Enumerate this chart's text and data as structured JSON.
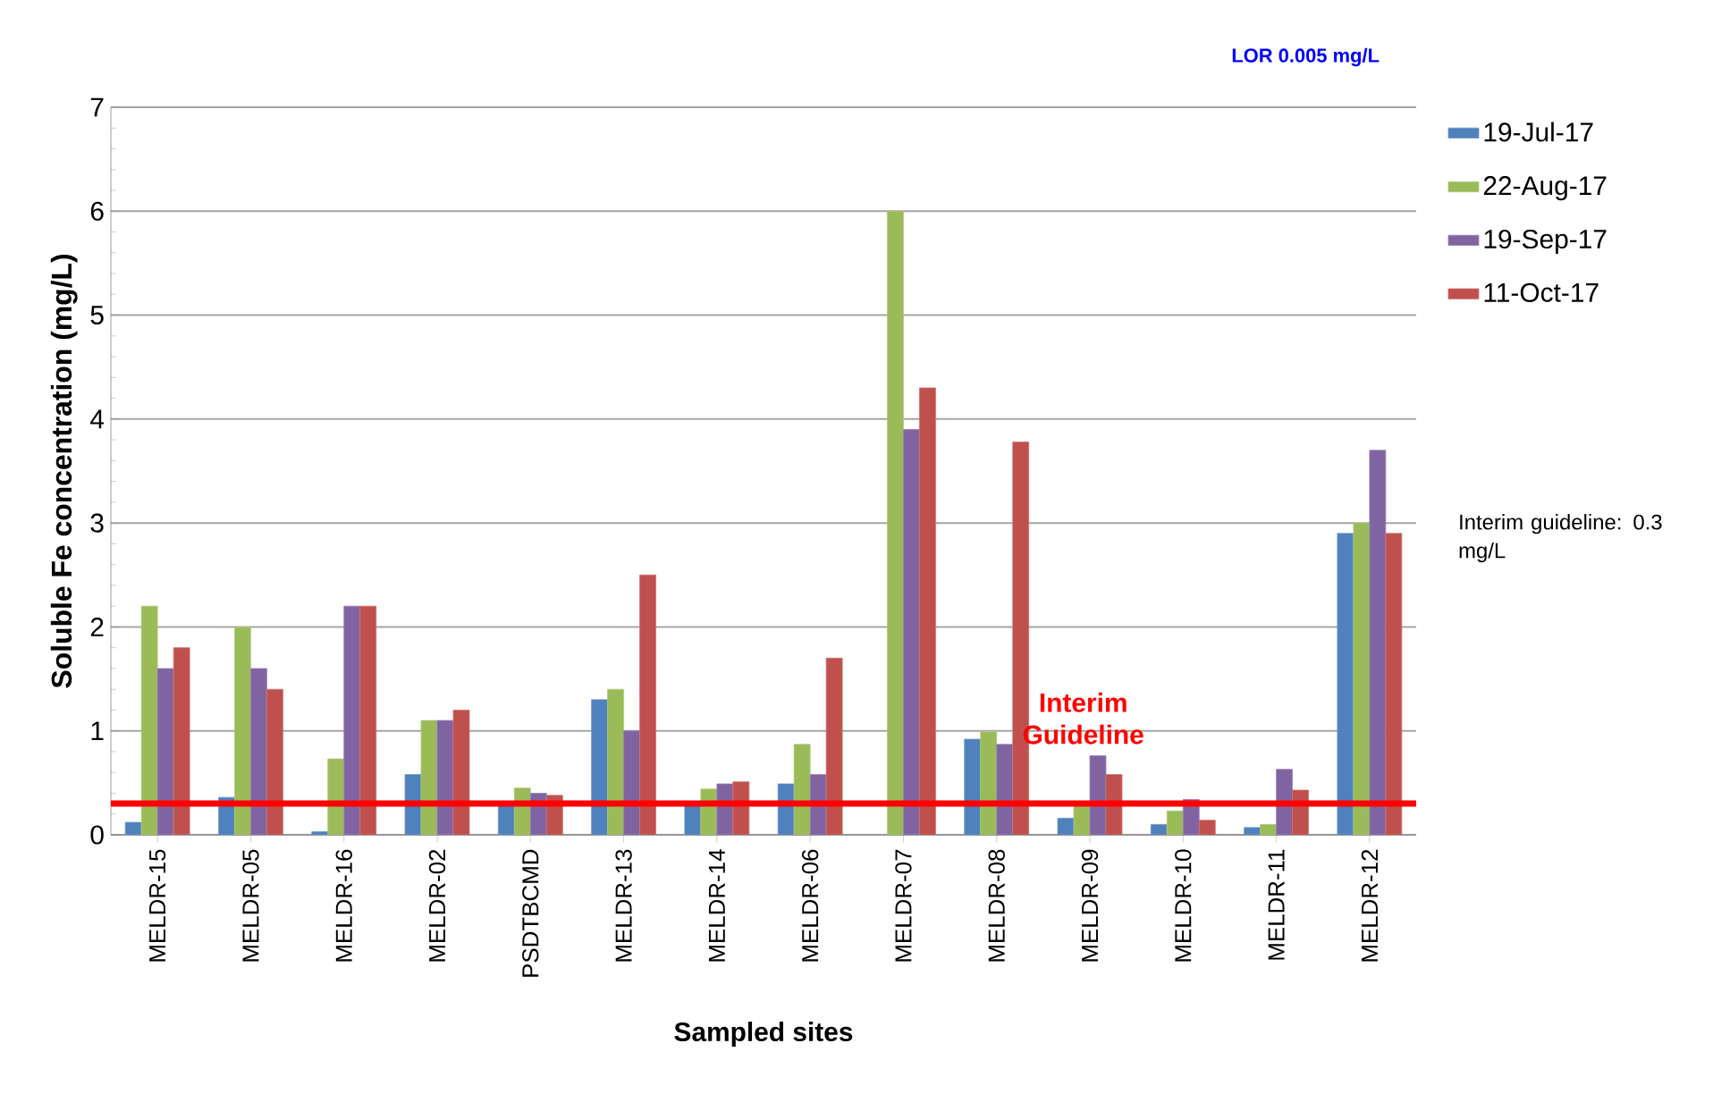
{
  "chart_data": {
    "type": "bar",
    "xlabel": "Sampled sites",
    "ylabel": "Soluble Fe concentration (mg/L)",
    "categories": [
      "MELDR-15",
      "MELDR-05",
      "MELDR-16",
      "MELDR-02",
      "PSDTBCMD",
      "MELDR-13",
      "MELDR-14",
      "MELDR-06",
      "MELDR-07",
      "MELDR-08",
      "MELDR-09",
      "MELDR-10",
      "MELDR-11",
      "MELDR-12"
    ],
    "series": [
      {
        "name": "19-Jul-17",
        "color": "#4f81bd",
        "values": [
          0.12,
          0.36,
          0.03,
          0.58,
          0.28,
          1.3,
          0.28,
          0.49,
          null,
          0.92,
          0.16,
          0.1,
          0.07,
          2.9
        ]
      },
      {
        "name": "22-Aug-17",
        "color": "#9bbb59",
        "values": [
          2.2,
          2.0,
          0.73,
          1.1,
          0.45,
          1.4,
          0.44,
          0.87,
          6.0,
          0.99,
          0.28,
          0.23,
          0.1,
          3.0
        ]
      },
      {
        "name": "19-Sep-17",
        "color": "#8064a2",
        "values": [
          1.6,
          1.6,
          2.2,
          1.1,
          0.4,
          1.0,
          0.49,
          0.58,
          3.9,
          0.87,
          0.76,
          0.34,
          0.63,
          3.7
        ]
      },
      {
        "name": "11-Oct-17",
        "color": "#c0504d",
        "values": [
          1.8,
          1.4,
          2.2,
          1.2,
          0.38,
          2.5,
          0.51,
          1.7,
          4.3,
          3.78,
          0.58,
          0.14,
          0.43,
          2.9
        ]
      }
    ],
    "ylim": [
      0,
      7
    ],
    "yticks": [
      0,
      1,
      2,
      3,
      4,
      5,
      6,
      7
    ],
    "grid": "y",
    "legend": "right",
    "ref_lines": [
      {
        "axis": "y",
        "value": 0.3,
        "label": "Interim Guideline",
        "color": "#ff0000"
      }
    ],
    "annotations": [
      "LOR 0.005 mg/L",
      "Interim guideline: 0.3 mg/L"
    ]
  }
}
